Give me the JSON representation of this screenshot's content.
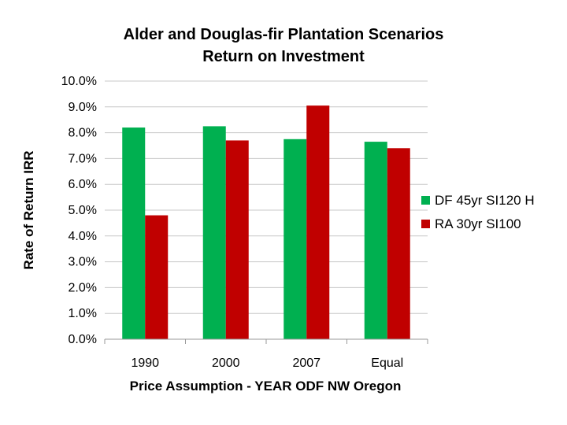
{
  "chart_data": {
    "type": "bar",
    "title": [
      "Alder and Douglas-fir Plantation Scenarios",
      "Return on Investment"
    ],
    "xlabel": "Price Assumption - YEAR ODF NW Oregon",
    "ylabel": "Rate of Return IRR",
    "categories": [
      "1990",
      "2000",
      "2007",
      "Equal"
    ],
    "ylim": [
      0,
      10
    ],
    "yticks": [
      "0.0%",
      "1.0%",
      "2.0%",
      "3.0%",
      "4.0%",
      "5.0%",
      "6.0%",
      "7.0%",
      "8.0%",
      "9.0%",
      "10.0%"
    ],
    "grid": true,
    "legend_position": "right",
    "series": [
      {
        "name": "DF 45yr SI120 H",
        "color": "#00B050",
        "values": [
          8.2,
          8.25,
          7.75,
          7.65
        ]
      },
      {
        "name": "RA 30yr SI100",
        "color": "#C00000",
        "values": [
          4.8,
          7.7,
          9.05,
          7.4
        ]
      }
    ]
  }
}
